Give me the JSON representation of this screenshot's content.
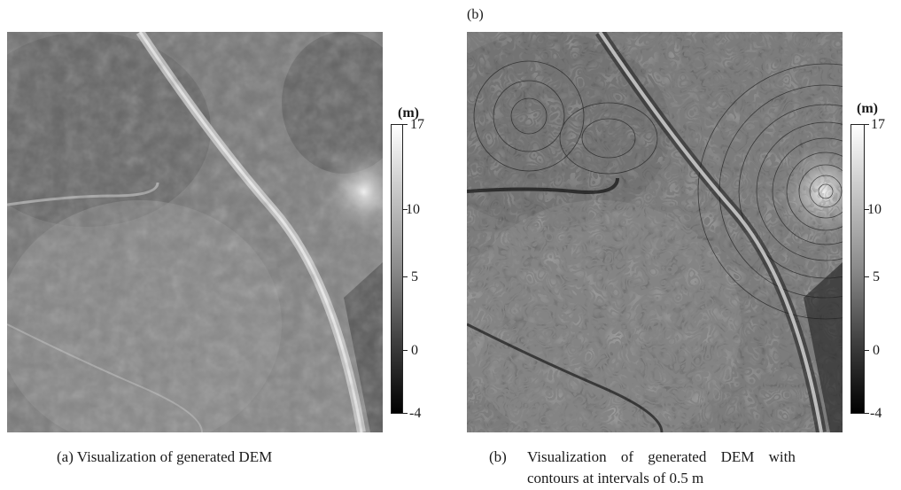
{
  "panel_a": {
    "unit": "(m)",
    "ticks": [
      "17",
      "10",
      "5",
      "0",
      "-4"
    ],
    "caption": "(a) Visualization of generated DEM"
  },
  "panel_b": {
    "tag": "(b)",
    "unit": "(m)",
    "ticks": [
      "17",
      "10",
      "5",
      "0",
      "-4"
    ],
    "caption_marker": "(b)",
    "caption_line1": "Visualization of generated DEM with",
    "caption_line2": "contours at intervals of 0.5 m"
  }
}
